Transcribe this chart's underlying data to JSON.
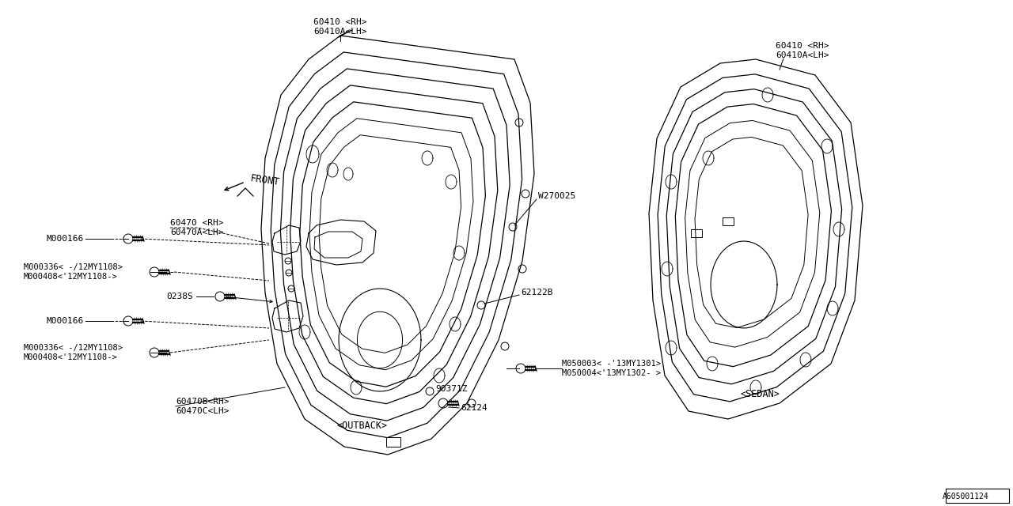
{
  "bg_color": "#ffffff",
  "line_color": "#000000",
  "font_family": "monospace",
  "diagram_id": "A605001124",
  "front_door_label1": "60410 <RH>",
  "front_door_label2": "60410A<LH>",
  "rear_door_label1": "60410 <RH>",
  "rear_door_label2": "60410A<LH>",
  "front_direction_label": "FRONT",
  "w270025_label": "W270025",
  "sedan_label": "<SEDAN>",
  "outback_label": "<OUTBACK>",
  "diagram_id_text": "A605001124"
}
